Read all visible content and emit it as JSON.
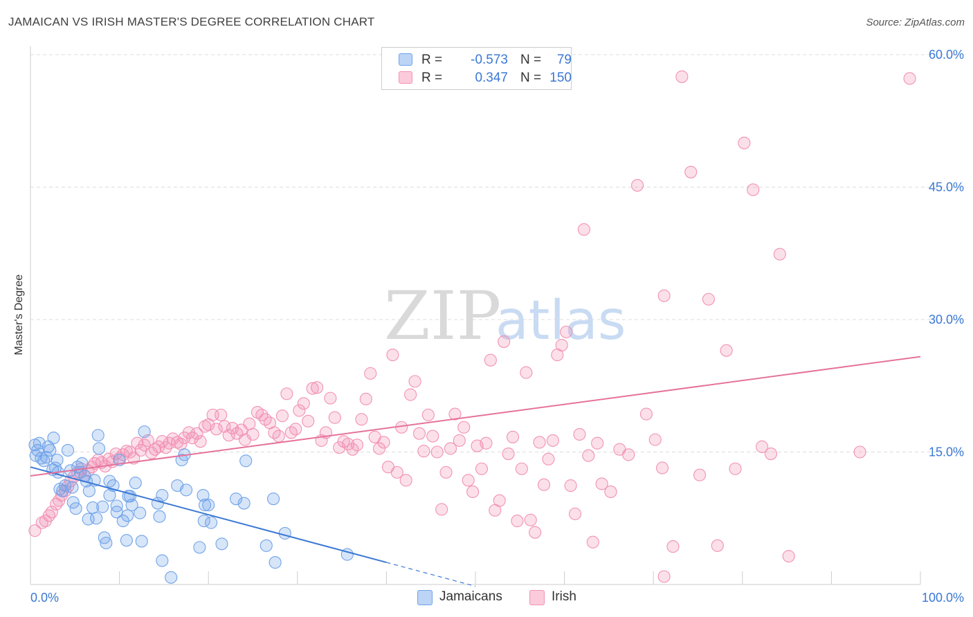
{
  "title": "JAMAICAN VS IRISH MASTER'S DEGREE CORRELATION CHART",
  "source": "Source: ZipAtlas.com",
  "watermark": {
    "zip": "ZIP",
    "atlas": "atlas"
  },
  "legend_stats": [
    {
      "r_label": "R =",
      "r_value": "-0.573",
      "n_label": "N =",
      "n_value": "79",
      "color": "#6fa3e8"
    },
    {
      "r_label": "R =",
      "r_value": "0.347",
      "n_label": "N =",
      "n_value": "150",
      "color": "#f291b2"
    }
  ],
  "legend": [
    {
      "label": "Jamaicans",
      "color": "#6fa3e8"
    },
    {
      "label": "Irish",
      "color": "#f291b2"
    }
  ],
  "chart_data": {
    "type": "scatter",
    "ylabel": "Master's Degree",
    "xlim": [
      0,
      100
    ],
    "ylim": [
      0,
      60
    ],
    "x_tick_labels": [
      "0.0%",
      "100.0%"
    ],
    "y_ticks": [
      15,
      30,
      45,
      60
    ],
    "y_tick_labels": [
      "15.0%",
      "30.0%",
      "45.0%",
      "60.0%"
    ],
    "grid": true,
    "series": [
      {
        "name": "Jamaicans",
        "color": "#6fa3e8",
        "line_color": "#3a78d4",
        "trend": {
          "x0": 0,
          "y0": 13.3,
          "x1": 40,
          "y1": 2.5,
          "dash_to_x": 50
        },
        "points": [
          [
            0.5,
            15.8
          ],
          [
            0.6,
            14.6
          ],
          [
            0.8,
            15.2
          ],
          [
            1.0,
            16.0
          ],
          [
            1.2,
            14.3
          ],
          [
            1.5,
            14.0
          ],
          [
            1.8,
            14.4
          ],
          [
            2.0,
            15.6
          ],
          [
            2.2,
            15.2
          ],
          [
            2.5,
            13.0
          ],
          [
            2.6,
            16.6
          ],
          [
            2.8,
            13.2
          ],
          [
            3.0,
            14.1
          ],
          [
            3.1,
            12.7
          ],
          [
            3.3,
            10.8
          ],
          [
            3.6,
            10.6
          ],
          [
            3.9,
            11.2
          ],
          [
            4.2,
            15.2
          ],
          [
            4.5,
            12.9
          ],
          [
            4.7,
            11.0
          ],
          [
            4.8,
            9.3
          ],
          [
            5.1,
            8.6
          ],
          [
            5.3,
            13.3
          ],
          [
            5.6,
            12.7
          ],
          [
            5.8,
            13.7
          ],
          [
            6.1,
            12.3
          ],
          [
            6.3,
            11.7
          ],
          [
            6.5,
            7.4
          ],
          [
            6.6,
            10.6
          ],
          [
            7.0,
            8.7
          ],
          [
            7.2,
            11.8
          ],
          [
            7.4,
            7.5
          ],
          [
            7.6,
            16.9
          ],
          [
            7.7,
            15.4
          ],
          [
            8.1,
            8.8
          ],
          [
            8.3,
            5.3
          ],
          [
            8.5,
            4.7
          ],
          [
            8.9,
            11.7
          ],
          [
            8.9,
            10.1
          ],
          [
            9.3,
            11.2
          ],
          [
            9.7,
            8.9
          ],
          [
            9.7,
            8.2
          ],
          [
            10.0,
            14.1
          ],
          [
            10.4,
            7.2
          ],
          [
            10.8,
            5.0
          ],
          [
            10.9,
            7.8
          ],
          [
            11.0,
            10.0
          ],
          [
            11.2,
            10.0
          ],
          [
            11.4,
            9.0
          ],
          [
            11.8,
            11.5
          ],
          [
            12.3,
            8.1
          ],
          [
            12.5,
            4.9
          ],
          [
            12.8,
            17.3
          ],
          [
            14.3,
            9.2
          ],
          [
            14.5,
            7.7
          ],
          [
            14.8,
            10.1
          ],
          [
            14.8,
            2.7
          ],
          [
            15.8,
            0.8
          ],
          [
            16.5,
            11.2
          ],
          [
            17.0,
            14.1
          ],
          [
            17.3,
            14.7
          ],
          [
            17.5,
            10.7
          ],
          [
            19.0,
            4.2
          ],
          [
            19.4,
            10.1
          ],
          [
            19.5,
            7.2
          ],
          [
            19.6,
            9.0
          ],
          [
            20.0,
            9.0
          ],
          [
            20.3,
            7.0
          ],
          [
            21.5,
            4.6
          ],
          [
            23.1,
            9.7
          ],
          [
            24.0,
            9.2
          ],
          [
            24.2,
            14.0
          ],
          [
            26.5,
            4.4
          ],
          [
            27.3,
            9.7
          ],
          [
            27.5,
            2.5
          ],
          [
            28.6,
            5.8
          ],
          [
            35.6,
            3.4
          ]
        ]
      },
      {
        "name": "Irish",
        "color": "#f291b2",
        "line_color": "#e5729a",
        "trend": {
          "x0": 0,
          "y0": 12.3,
          "x1": 100,
          "y1": 25.8
        },
        "points": [
          [
            0.5,
            6.1
          ],
          [
            1.3,
            7.0
          ],
          [
            1.7,
            7.2
          ],
          [
            2.1,
            7.8
          ],
          [
            2.4,
            8.2
          ],
          [
            2.9,
            9.1
          ],
          [
            3.2,
            9.5
          ],
          [
            3.5,
            10.1
          ],
          [
            3.9,
            10.6
          ],
          [
            4.2,
            11.1
          ],
          [
            4.5,
            11.7
          ],
          [
            4.9,
            12.2
          ],
          [
            5.3,
            12.7
          ],
          [
            5.7,
            13.1
          ],
          [
            6.1,
            12.3
          ],
          [
            6.5,
            12.9
          ],
          [
            6.9,
            13.3
          ],
          [
            7.2,
            13.7
          ],
          [
            7.6,
            14.1
          ],
          [
            8.0,
            13.8
          ],
          [
            8.4,
            13.4
          ],
          [
            8.8,
            14.2
          ],
          [
            9.2,
            13.9
          ],
          [
            9.6,
            14.8
          ],
          [
            10.0,
            14.3
          ],
          [
            10.4,
            14.7
          ],
          [
            10.8,
            15.1
          ],
          [
            11.2,
            15.0
          ],
          [
            11.6,
            14.3
          ],
          [
            12.0,
            16.0
          ],
          [
            12.4,
            15.2
          ],
          [
            12.8,
            15.8
          ],
          [
            13.2,
            16.3
          ],
          [
            13.6,
            14.9
          ],
          [
            14.0,
            15.3
          ],
          [
            14.4,
            15.6
          ],
          [
            14.8,
            16.2
          ],
          [
            15.2,
            15.5
          ],
          [
            15.6,
            16.0
          ],
          [
            16.0,
            16.5
          ],
          [
            16.5,
            16.1
          ],
          [
            16.9,
            15.9
          ],
          [
            17.3,
            16.6
          ],
          [
            17.8,
            17.2
          ],
          [
            18.2,
            16.6
          ],
          [
            18.7,
            17.1
          ],
          [
            19.1,
            16.2
          ],
          [
            19.6,
            17.9
          ],
          [
            20.0,
            18.1
          ],
          [
            20.5,
            19.2
          ],
          [
            20.9,
            17.6
          ],
          [
            21.4,
            19.2
          ],
          [
            21.8,
            17.9
          ],
          [
            22.3,
            16.9
          ],
          [
            22.7,
            17.7
          ],
          [
            23.2,
            17.1
          ],
          [
            23.7,
            17.5
          ],
          [
            24.1,
            16.4
          ],
          [
            24.6,
            18.2
          ],
          [
            25.0,
            17.0
          ],
          [
            25.5,
            19.5
          ],
          [
            26.0,
            19.2
          ],
          [
            26.4,
            18.7
          ],
          [
            26.9,
            18.3
          ],
          [
            27.4,
            17.2
          ],
          [
            27.9,
            16.8
          ],
          [
            28.3,
            19.1
          ],
          [
            28.8,
            21.6
          ],
          [
            29.3,
            17.2
          ],
          [
            29.8,
            17.6
          ],
          [
            30.2,
            19.7
          ],
          [
            30.7,
            20.5
          ],
          [
            31.2,
            18.5
          ],
          [
            31.7,
            22.2
          ],
          [
            32.2,
            22.3
          ],
          [
            32.7,
            16.3
          ],
          [
            33.2,
            17.2
          ],
          [
            33.7,
            21.1
          ],
          [
            34.2,
            18.9
          ],
          [
            34.7,
            15.5
          ],
          [
            35.2,
            16.2
          ],
          [
            35.7,
            15.9
          ],
          [
            36.2,
            15.3
          ],
          [
            36.7,
            15.8
          ],
          [
            37.2,
            18.7
          ],
          [
            37.7,
            21.0
          ],
          [
            38.2,
            23.9
          ],
          [
            38.7,
            16.7
          ],
          [
            39.2,
            15.4
          ],
          [
            39.7,
            16.1
          ],
          [
            40.2,
            13.3
          ],
          [
            40.7,
            26.0
          ],
          [
            41.2,
            12.7
          ],
          [
            41.7,
            17.8
          ],
          [
            42.2,
            11.8
          ],
          [
            42.7,
            21.5
          ],
          [
            43.2,
            23.0
          ],
          [
            43.7,
            17.1
          ],
          [
            44.2,
            15.1
          ],
          [
            44.7,
            19.2
          ],
          [
            45.2,
            16.8
          ],
          [
            45.7,
            15.0
          ],
          [
            46.2,
            8.5
          ],
          [
            46.7,
            12.7
          ],
          [
            47.2,
            15.4
          ],
          [
            47.7,
            19.3
          ],
          [
            48.2,
            16.3
          ],
          [
            48.7,
            17.8
          ],
          [
            49.2,
            11.8
          ],
          [
            49.7,
            10.5
          ],
          [
            50.2,
            15.7
          ],
          [
            50.7,
            13.1
          ],
          [
            51.2,
            16.0
          ],
          [
            51.7,
            25.4
          ],
          [
            52.2,
            8.4
          ],
          [
            52.7,
            9.5
          ],
          [
            53.2,
            27.5
          ],
          [
            53.7,
            14.8
          ],
          [
            54.2,
            16.7
          ],
          [
            54.7,
            7.2
          ],
          [
            55.2,
            13.1
          ],
          [
            55.7,
            24.0
          ],
          [
            56.2,
            7.3
          ],
          [
            56.7,
            5.9
          ],
          [
            57.2,
            16.1
          ],
          [
            57.7,
            11.3
          ],
          [
            58.2,
            14.2
          ],
          [
            58.7,
            16.3
          ],
          [
            59.2,
            26.0
          ],
          [
            59.7,
            27.1
          ],
          [
            60.2,
            28.6
          ],
          [
            60.7,
            11.2
          ],
          [
            61.2,
            8.0
          ],
          [
            61.7,
            17.0
          ],
          [
            62.2,
            40.2
          ],
          [
            62.7,
            14.6
          ],
          [
            63.2,
            4.8
          ],
          [
            63.7,
            16.0
          ],
          [
            64.2,
            11.4
          ],
          [
            65.2,
            10.5
          ],
          [
            66.2,
            15.3
          ],
          [
            67.2,
            14.7
          ],
          [
            68.2,
            45.2
          ],
          [
            69.2,
            19.3
          ],
          [
            70.2,
            16.4
          ],
          [
            71.2,
            32.7
          ],
          [
            72.2,
            4.3
          ],
          [
            73.2,
            57.5
          ],
          [
            74.2,
            46.7
          ],
          [
            75.2,
            12.4
          ],
          [
            76.2,
            32.3
          ],
          [
            77.2,
            4.4
          ],
          [
            78.2,
            26.5
          ],
          [
            79.2,
            13.1
          ],
          [
            80.2,
            50.0
          ],
          [
            81.2,
            44.7
          ],
          [
            82.2,
            15.6
          ],
          [
            83.2,
            14.8
          ],
          [
            84.2,
            37.4
          ],
          [
            85.2,
            3.2
          ],
          [
            93.2,
            15.0
          ],
          [
            98.8,
            57.3
          ],
          [
            71.2,
            0.9
          ],
          [
            71.0,
            13.2
          ]
        ]
      }
    ]
  }
}
